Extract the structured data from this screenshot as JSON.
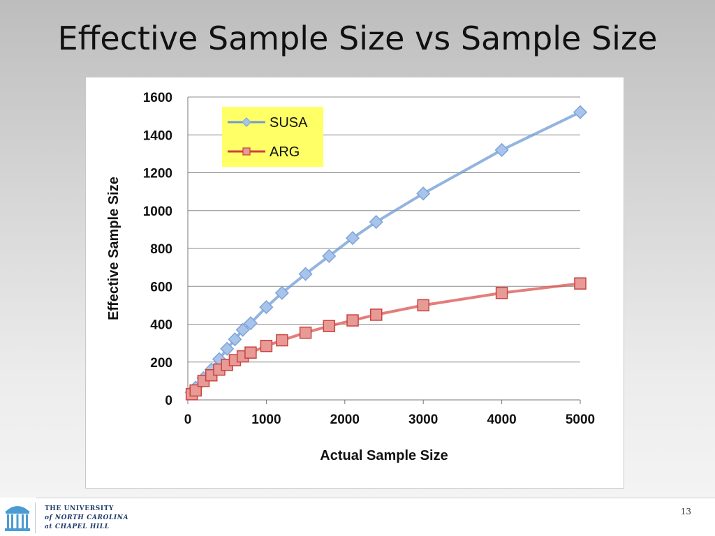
{
  "slide": {
    "title": "Effective Sample Size vs Sample Size",
    "page_number": "13"
  },
  "footer": {
    "university_line1": "THE UNIVERSITY",
    "university_line2": "of NORTH CAROLINA",
    "university_line3": "at CHAPEL HILL",
    "logo_icon": "old-well-icon"
  },
  "colors": {
    "susa": "#6f9bd4",
    "arg": "#d9534f",
    "legend_bg": "#ffff66"
  },
  "chart_data": {
    "type": "line",
    "title": "",
    "xlabel": "Actual Sample Size",
    "ylabel": "Effective Sample Size",
    "xlim": [
      0,
      5000
    ],
    "ylim": [
      0,
      1600
    ],
    "xticks": [
      0,
      1000,
      2000,
      3000,
      4000,
      5000
    ],
    "yticks": [
      0,
      200,
      400,
      600,
      800,
      1000,
      1200,
      1400,
      1600
    ],
    "grid": "horizontal",
    "legend_position": "top-left",
    "series": [
      {
        "name": "SUSA",
        "marker": "diamond",
        "x": [
          50,
          100,
          200,
          300,
          400,
          500,
          600,
          700,
          800,
          1000,
          1200,
          1500,
          1800,
          2100,
          2400,
          3000,
          4000,
          5000
        ],
        "y": [
          40,
          65,
          115,
          160,
          215,
          270,
          320,
          370,
          405,
          490,
          565,
          665,
          760,
          855,
          940,
          1090,
          1320,
          1520
        ]
      },
      {
        "name": "ARG",
        "marker": "square",
        "x": [
          50,
          100,
          200,
          300,
          400,
          500,
          600,
          700,
          800,
          1000,
          1200,
          1500,
          1800,
          2100,
          2400,
          3000,
          4000,
          5000
        ],
        "y": [
          30,
          50,
          100,
          130,
          160,
          185,
          210,
          230,
          250,
          285,
          315,
          355,
          390,
          420,
          450,
          500,
          565,
          615
        ]
      }
    ]
  }
}
